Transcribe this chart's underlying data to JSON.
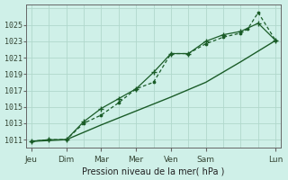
{
  "bg_color": "#cff0e8",
  "grid_color": "#b0d8cc",
  "line_color": "#1a5c28",
  "title": "Pression niveau de la mer( hPa )",
  "ylabel_ticks": [
    1011,
    1013,
    1015,
    1017,
    1019,
    1021,
    1023,
    1025
  ],
  "xtick_labels": [
    "Jeu",
    "Dim",
    "Mar",
    "Mer",
    "Ven",
    "Sam",
    "Lun"
  ],
  "xtick_positions": [
    0,
    1,
    2,
    3,
    4,
    5,
    7
  ],
  "ylim": [
    1010.0,
    1027.5
  ],
  "xlim": [
    -0.15,
    7.15
  ],
  "line1_x": [
    0,
    0.5,
    1,
    1.5,
    2,
    2.5,
    3,
    3.5,
    4,
    4.5,
    5,
    5.5,
    6,
    6.5,
    7
  ],
  "line1_y": [
    1010.8,
    1011.0,
    1011.0,
    1013.2,
    1014.8,
    1016.0,
    1017.2,
    1019.2,
    1021.5,
    1021.5,
    1023.0,
    1023.8,
    1024.2,
    1025.2,
    1023.1
  ],
  "line2_x": [
    0,
    0.5,
    1,
    1.5,
    2,
    2.5,
    3,
    3.5,
    4,
    4.5,
    5,
    5.5,
    6,
    6.2,
    6.5,
    7
  ],
  "line2_y": [
    1010.8,
    1011.0,
    1011.0,
    1013.0,
    1014.0,
    1015.5,
    1017.2,
    1018.0,
    1021.5,
    1021.5,
    1022.7,
    1023.5,
    1024.0,
    1024.5,
    1026.5,
    1023.1
  ],
  "line3_x": [
    0,
    1,
    2,
    3,
    4,
    5,
    6,
    7
  ],
  "line3_y": [
    1010.8,
    1011.0,
    1012.8,
    1014.5,
    1016.2,
    1018.0,
    1020.5,
    1023.1
  ]
}
